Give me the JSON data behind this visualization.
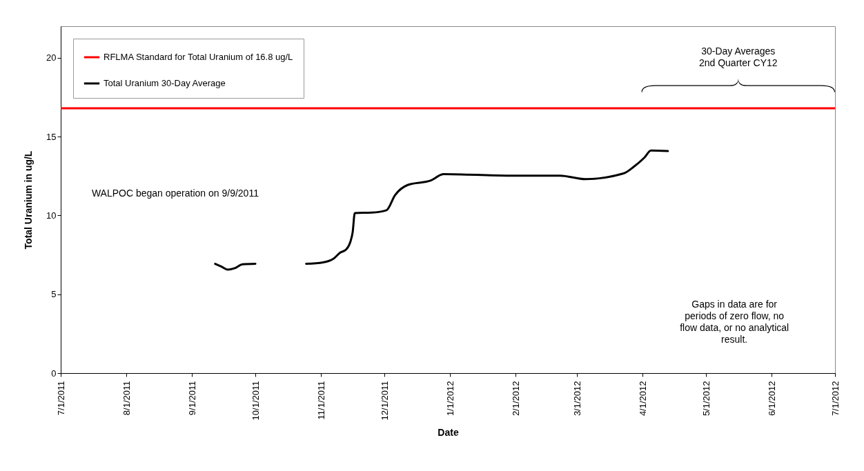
{
  "chart_data": {
    "type": "line",
    "xlabel": "Date",
    "ylabel": "Total Uranium in ug/L",
    "x": [
      "2011-09-12",
      "2011-09-15",
      "2011-09-18",
      "2011-09-21",
      "2011-09-25",
      "2011-10-01",
      "2011-10-08",
      "2011-10-25",
      "2011-11-02",
      "2011-11-07",
      "2011-11-10",
      "2011-11-13",
      "2011-11-15",
      "2011-11-16",
      "2011-11-17",
      "2011-11-25",
      "2011-12-02",
      "2011-12-06",
      "2011-12-12",
      "2011-12-23",
      "2011-12-29",
      "2012-01-29",
      "2012-02-22",
      "2012-03-05",
      "2012-03-23",
      "2012-03-28",
      "2012-04-02",
      "2012-04-05",
      "2012-04-13"
    ],
    "series": [
      {
        "name": "Total Uranium 30-Day Average",
        "color": "#000000",
        "values": [
          6.93,
          6.75,
          6.56,
          6.64,
          6.9,
          6.93,
          null,
          6.93,
          7.02,
          7.26,
          7.63,
          7.85,
          8.36,
          8.94,
          10.15,
          10.18,
          10.33,
          11.28,
          11.93,
          12.22,
          12.62,
          12.52,
          12.52,
          12.3,
          12.66,
          13.1,
          13.68,
          14.12,
          14.08
        ]
      }
    ],
    "ref_lines": [
      {
        "axis": "y",
        "value": 16.8,
        "label": "RFLMA Standard for Total Uranium of 16.8 ug/L",
        "color": "#ff0000"
      }
    ],
    "xlim": [
      "2011-07-01",
      "2012-07-01"
    ],
    "xticks": [
      {
        "value": "2011-07-01",
        "label": "7/1/2011"
      },
      {
        "value": "2011-08-01",
        "label": "8/1/2011"
      },
      {
        "value": "2011-09-01",
        "label": "9/1/2011"
      },
      {
        "value": "2011-10-01",
        "label": "10/1/2011"
      },
      {
        "value": "2011-11-01",
        "label": "11/1/2011"
      },
      {
        "value": "2011-12-01",
        "label": "12/1/2011"
      },
      {
        "value": "2012-01-01",
        "label": "1/1/2012"
      },
      {
        "value": "2012-02-01",
        "label": "2/1/2012"
      },
      {
        "value": "2012-03-01",
        "label": "3/1/2012"
      },
      {
        "value": "2012-04-01",
        "label": "4/1/2012"
      },
      {
        "value": "2012-05-01",
        "label": "5/1/2012"
      },
      {
        "value": "2012-06-01",
        "label": "6/1/2012"
      },
      {
        "value": "2012-07-01",
        "label": "7/1/2012"
      }
    ],
    "ylim": [
      0,
      22
    ],
    "yticks": [
      0,
      5,
      10,
      15,
      20
    ],
    "annotations": [
      "WALPOC began operation on 9/9/2011",
      "30-Day Averages\n2nd Quarter CY12",
      "Gaps in data are for\nperiods of zero flow, no\nflow data, or no analytical\nresult."
    ],
    "legend": "top left",
    "grid": false,
    "marker": "none",
    "line_style": "solid"
  }
}
